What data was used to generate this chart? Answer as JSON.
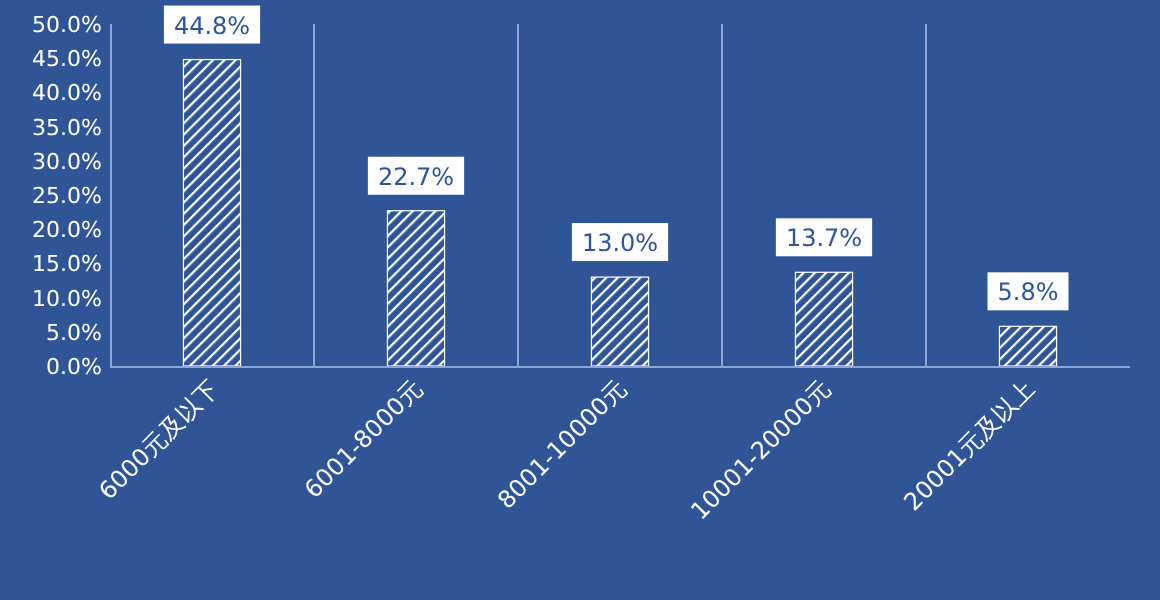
{
  "chart_data": {
    "type": "bar",
    "categories": [
      "6000元及以下",
      "6001-8000元",
      "8001-10000元",
      "10001-20000元",
      "20001元及以上"
    ],
    "values": [
      44.8,
      22.7,
      13.0,
      13.7,
      5.8
    ],
    "value_labels": [
      "44.8%",
      "22.7%",
      "13.0%",
      "13.7%",
      "5.8%"
    ],
    "color": "#ffffff",
    "ylim": [
      0,
      50
    ],
    "yticks": [
      {
        "value": 0,
        "label": "0.0%"
      },
      {
        "value": 5,
        "label": "5.0%"
      },
      {
        "value": 10,
        "label": "10.0%"
      },
      {
        "value": 15,
        "label": "15.0%"
      },
      {
        "value": 20,
        "label": "20.0%"
      },
      {
        "value": 25,
        "label": "25.0%"
      },
      {
        "value": 30,
        "label": "30.0%"
      },
      {
        "value": 35,
        "label": "35.0%"
      },
      {
        "value": 40,
        "label": "40.0%"
      },
      {
        "value": 45,
        "label": "45.0%"
      },
      {
        "value": 50,
        "label": "50.0%"
      }
    ],
    "grid": "x"
  }
}
